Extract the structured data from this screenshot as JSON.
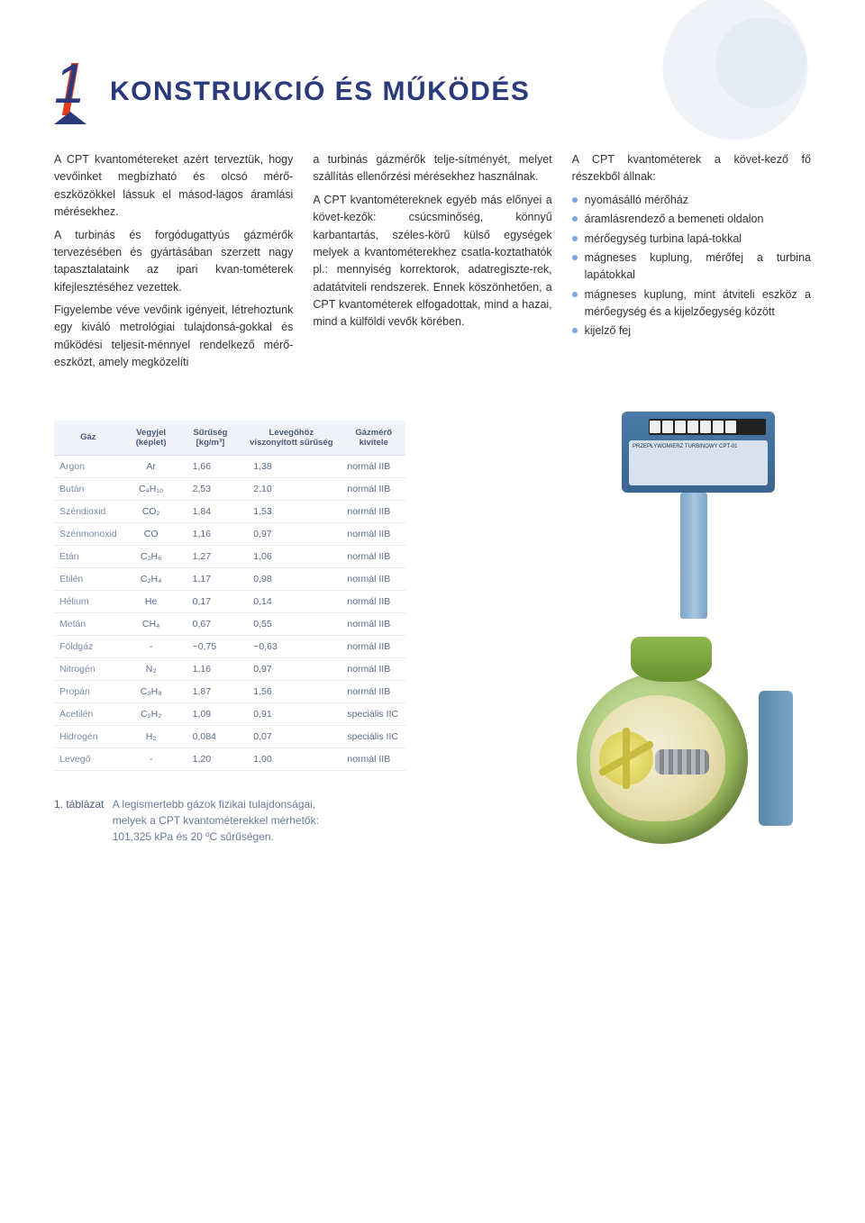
{
  "section_number": "1",
  "title": "KONSTRUKCIÓ ÉS MŰKÖDÉS",
  "col1": {
    "p1": "A CPT kvantométereket azért terveztük, hogy vevőinket megbízható és olcsó mérő-eszközökkel lássuk el másod-lagos áramlási mérésekhez.",
    "p2": "A turbinás és forgódugattyús gázmérők tervezésében és gyártásában szerzett nagy tapasztalataink az ipari kvan-tométerek kifejlesztéséhez vezettek.",
    "p3": "Figyelembe véve vevőink igényeit, létrehoztunk egy kiváló metrológiai tulajdonsá-gokkal és működési teljesít-ménnyel rendelkező mérő-eszközt, amely megközelíti"
  },
  "col2": {
    "p1": "a turbinás gázmérők telje-sítményét, melyet szállítás ellenőrzési mérésekhez használnak.",
    "p2": "A CPT kvantométereknek egyéb más előnyei a követ-kezők: csúcsminőség, könnyű karbantartás, széles-körű külső egységek melyek a kvantométerekhez csatla-koztathatók pl.: mennyiség korrektorok, adatregiszte-rek, adatátviteli rendszerek. Ennek köszönhetően, a CPT kvantométerek elfogadottak, mind a hazai, mind a külföldi vevők körében."
  },
  "col3": {
    "intro": "A CPT kvantométerek a követ-kező fő részekből állnak:",
    "items": [
      "nyomásálló mérőház",
      "áramlásrendező a bemeneti oldalon",
      "mérőegység turbina lapá-tokkal",
      "mágneses kuplung, mérőfej a turbina lapátokkal",
      "mágneses kuplung, mint átviteli eszköz a mérőegység és a kijelzőegység között",
      "kijelző fej"
    ]
  },
  "table": {
    "headers": [
      "Gáz",
      "Vegyjel (képlet)",
      "Sűrűség [kg/m³]",
      "Levegőhöz viszonyított sűrűség",
      "Gázmérő kivitele"
    ],
    "rows": [
      {
        "g": "Argon",
        "f": "Ar",
        "d": "1,66",
        "r": "1,38",
        "k": "normál IIB"
      },
      {
        "g": "Bután",
        "f": "C₄H₁₀",
        "d": "2,53",
        "r": "2,10",
        "k": "normál IIB"
      },
      {
        "g": "Széndioxid",
        "f": "CO₂",
        "d": "1,84",
        "r": "1,53",
        "k": "normál IIB"
      },
      {
        "g": "Szénmonoxid",
        "f": "CO",
        "d": "1,16",
        "r": "0,97",
        "k": "normál IIB"
      },
      {
        "g": "Etán",
        "f": "C₂H₆",
        "d": "1,27",
        "r": "1,06",
        "k": "normál IIB"
      },
      {
        "g": "Etilén",
        "f": "C₂H₄",
        "d": "1,17",
        "r": "0,98",
        "k": "normál IIB"
      },
      {
        "g": "Hélium",
        "f": "He",
        "d": "0,17",
        "r": "0,14",
        "k": "normál IIB"
      },
      {
        "g": "Metán",
        "f": "CH₄",
        "d": "0,67",
        "r": "0,55",
        "k": "normál IIB"
      },
      {
        "g": "Földgáz",
        "f": "-",
        "d": "~0,75",
        "r": "~0,63",
        "k": "normál IIB"
      },
      {
        "g": "Nitrogén",
        "f": "N₂",
        "d": "1,16",
        "r": "0,97",
        "k": "normál IIB"
      },
      {
        "g": "Propán",
        "f": "C₃H₈",
        "d": "1,87",
        "r": "1,56",
        "k": "normál IIB"
      },
      {
        "g": "Acetilén",
        "f": "C₂H₂",
        "d": "1,09",
        "r": "0,91",
        "k": "speciális IIC"
      },
      {
        "g": "Hidrogén",
        "f": "H₂",
        "d": "0,084",
        "r": "0,07",
        "k": "speciális IIC"
      },
      {
        "g": "Levegő",
        "f": "-",
        "d": "1,20",
        "r": "1,00",
        "k": "normál IIB"
      }
    ]
  },
  "caption": {
    "label": "1. táblázat",
    "text": "A legismertebb gázok fizikai tulajdonságai, melyek a CPT kvantométerekkel mérhetők: 101,325 kPa és 20 ºC sűrűségen."
  },
  "device_plate": "PRZEPŁYWOMIERZ TURBINOWY CPT-01",
  "colors": {
    "heading": "#2a3a7a",
    "accent_red": "#e63b1f",
    "bullet": "#7aa7d9",
    "table_header_bg": "#f0f3f8",
    "table_border": "#e8ecf3",
    "body_text": "#333333",
    "muted": "#5a6a8a",
    "device_blue": "#4a7aa8",
    "device_green": "#9fc060",
    "device_yellow": "#e8dfb0"
  }
}
